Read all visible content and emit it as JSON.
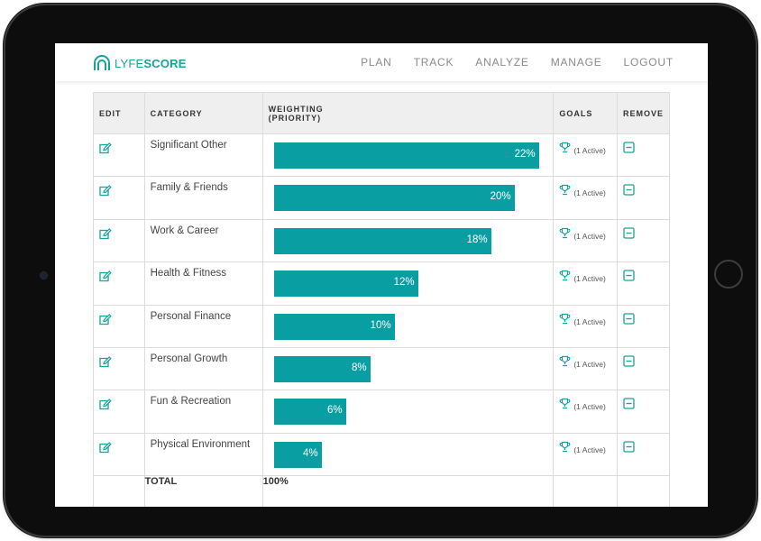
{
  "brand": {
    "part1": "LYFE",
    "part2": "SCORE",
    "color": "#17a398"
  },
  "nav": [
    "PLAN",
    "TRACK",
    "ANALYZE",
    "MANAGE",
    "LOGOUT"
  ],
  "headers": {
    "edit": "EDIT",
    "category": "CATEGORY",
    "weighting1": "WEIGHTING",
    "weighting2": "(PRIORITY)",
    "goals": "GOALS",
    "remove": "REMOVE"
  },
  "rows": [
    {
      "category": "Significant Other",
      "weight": 22,
      "weight_label": "22%",
      "goals": "(1 Active)"
    },
    {
      "category": "Family & Friends",
      "weight": 20,
      "weight_label": "20%",
      "goals": "(1 Active)"
    },
    {
      "category": "Work & Career",
      "weight": 18,
      "weight_label": "18%",
      "goals": "(1 Active)"
    },
    {
      "category": "Health & Fitness",
      "weight": 12,
      "weight_label": "12%",
      "goals": "(1 Active)"
    },
    {
      "category": "Personal Finance",
      "weight": 10,
      "weight_label": "10%",
      "goals": "(1 Active)"
    },
    {
      "category": "Personal Growth",
      "weight": 8,
      "weight_label": "8%",
      "goals": "(1 Active)"
    },
    {
      "category": "Fun & Recreation",
      "weight": 6,
      "weight_label": "6%",
      "goals": "(1 Active)"
    },
    {
      "category": "Physical Environment",
      "weight": 4,
      "weight_label": "4%",
      "goals": "(1 Active)"
    }
  ],
  "total": {
    "label": "TOTAL",
    "value": "100%"
  },
  "colors": {
    "bar": "#099ea2",
    "icon": "#17a398",
    "header_bg": "#efefef"
  },
  "icons": {
    "edit": "edit-icon",
    "goal": "trophy-icon",
    "remove": "minus-square-icon"
  },
  "chart_data": {
    "type": "bar",
    "categories": [
      "Significant Other",
      "Family & Friends",
      "Work & Career",
      "Health & Fitness",
      "Personal Finance",
      "Personal Growth",
      "Fun & Recreation",
      "Physical Environment"
    ],
    "values": [
      22,
      20,
      18,
      12,
      10,
      8,
      6,
      4
    ]
  }
}
